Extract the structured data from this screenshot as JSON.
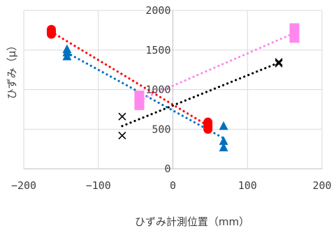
{
  "chart_data": {
    "type": "scatter",
    "title": "",
    "xlabel": "ひずみ計測位置（mm）",
    "ylabel": "ひずみ（μ）",
    "xlim": [
      -200,
      200
    ],
    "ylim": [
      0,
      2000
    ],
    "xticks": [
      -200,
      -100,
      0,
      100,
      200
    ],
    "yticks": [
      0,
      500,
      1000,
      1500,
      2000
    ],
    "xtick_labels": [
      "−200",
      "−100",
      "0",
      "100",
      "200"
    ],
    "ytick_labels": [
      "0",
      "500",
      "1000",
      "1500",
      "2000"
    ],
    "grid": true,
    "legend": "none",
    "series": [
      {
        "marker": "circle",
        "color": "#ff0000",
        "trendline": "linear-dotted",
        "points": [
          [
            -163,
            1760
          ],
          [
            -163,
            1740
          ],
          [
            -163,
            1720
          ],
          [
            -163,
            1700
          ],
          [
            47,
            590
          ],
          [
            47,
            560
          ],
          [
            47,
            530
          ],
          [
            47,
            500
          ]
        ]
      },
      {
        "marker": "triangle",
        "color": "#0070c0",
        "trendline": "linear-dotted",
        "points": [
          [
            -142,
            1510
          ],
          [
            -142,
            1470
          ],
          [
            -142,
            1420
          ],
          [
            68,
            540
          ],
          [
            68,
            350
          ],
          [
            68,
            270
          ]
        ]
      },
      {
        "marker": "square",
        "color": "#ff88ee",
        "trendline": "linear-dotted",
        "points": [
          [
            -45,
            900
          ],
          [
            -45,
            830
          ],
          [
            163,
            1750
          ],
          [
            163,
            1680
          ]
        ]
      },
      {
        "marker": "x",
        "color": "#000000",
        "trendline": "linear-dotted",
        "points": [
          [
            -68,
            660
          ],
          [
            -68,
            420
          ],
          [
            142,
            1350
          ],
          [
            142,
            1330
          ]
        ]
      }
    ]
  }
}
